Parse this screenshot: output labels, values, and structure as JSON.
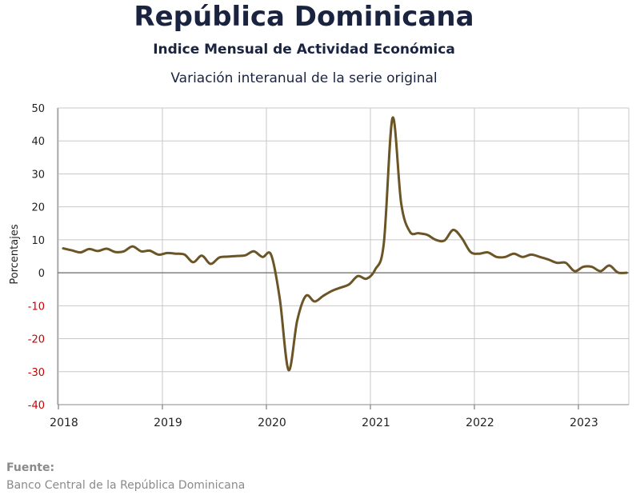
{
  "chart_data": {
    "type": "line",
    "title": "República Dominicana",
    "subtitle": "Indice Mensual de  Actividad Económica",
    "subtitle2": "Variación interanual de la serie original",
    "ylabel": "Porcentajes",
    "xlabel": "",
    "ylim": [
      -40,
      50
    ],
    "yticks": [
      "50",
      "40",
      "30",
      "20",
      "10",
      "0",
      "-10",
      "-20",
      "-30",
      "-40"
    ],
    "xticks": [
      "2018",
      "2019",
      "2020",
      "2021",
      "2022",
      "2023"
    ],
    "grid": true,
    "colors": {
      "line": "#6b5425",
      "negative_ticks": "#cc0000",
      "grid": "#c8c8c8",
      "zero_line": "#808080"
    },
    "series": [
      {
        "x": [
          "2018-01",
          "2018-02",
          "2018-03",
          "2018-04",
          "2018-05",
          "2018-06",
          "2018-07",
          "2018-08",
          "2018-09",
          "2018-10",
          "2018-11",
          "2018-12",
          "2019-01",
          "2019-02",
          "2019-03",
          "2019-04",
          "2019-05",
          "2019-06",
          "2019-07",
          "2019-08",
          "2019-09",
          "2019-10",
          "2019-11",
          "2019-12",
          "2020-01",
          "2020-02",
          "2020-03",
          "2020-04",
          "2020-05",
          "2020-06",
          "2020-07",
          "2020-08",
          "2020-09",
          "2020-10",
          "2020-11",
          "2020-12",
          "2021-01",
          "2021-02",
          "2021-03",
          "2021-04",
          "2021-05",
          "2021-06",
          "2021-07",
          "2021-08",
          "2021-09",
          "2021-10",
          "2021-11",
          "2021-12",
          "2022-01",
          "2022-02",
          "2022-03",
          "2022-04",
          "2022-05",
          "2022-06",
          "2022-07",
          "2022-08",
          "2022-09",
          "2022-10",
          "2022-11",
          "2022-12",
          "2023-01",
          "2023-02",
          "2023-03",
          "2023-04",
          "2023-05",
          "2023-06"
        ],
        "values": [
          7.4,
          6.8,
          6.2,
          7.2,
          6.6,
          7.3,
          6.3,
          6.5,
          8.0,
          6.5,
          6.7,
          5.5,
          6.0,
          5.8,
          5.5,
          3.2,
          5.2,
          2.7,
          4.6,
          4.9,
          5.1,
          5.3,
          6.5,
          4.8,
          5.4,
          -8.0,
          -29.5,
          -14.5,
          -7.0,
          -8.7,
          -7.0,
          -5.5,
          -4.5,
          -3.5,
          -1.0,
          -1.8,
          1.0,
          9.0,
          47.0,
          21.0,
          12.5,
          12.0,
          11.5,
          10.0,
          9.8,
          13.0,
          10.5,
          6.3,
          5.8,
          6.2,
          4.8,
          4.8,
          5.8,
          4.8,
          5.5,
          4.8,
          4.0,
          3.0,
          3.0,
          0.5,
          1.8,
          1.8,
          0.5,
          2.2,
          0.1,
          0.0
        ]
      }
    ]
  },
  "source": {
    "label": "Fuente:",
    "text": "Banco Central de la República Dominicana"
  }
}
